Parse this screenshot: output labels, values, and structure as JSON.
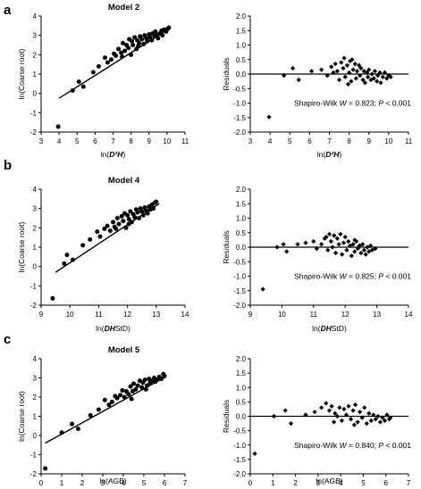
{
  "panels": [
    {
      "letter": "a",
      "left": {
        "title": "Model 2",
        "xlabel_pre": "ln(",
        "xlabel_ital": "D²H",
        "xlabel_post": ")",
        "ylabel": "ln(Coarse root)",
        "xlim": [
          3,
          11
        ],
        "ylim": [
          -2,
          4
        ],
        "xticks": [
          3,
          4,
          5,
          6,
          7,
          8,
          9,
          10,
          11
        ],
        "yticks": [
          -2,
          -1,
          0,
          1,
          2,
          3,
          4
        ],
        "fit_line": [
          [
            4.0,
            -0.25
          ],
          [
            10.2,
            3.4
          ]
        ],
        "points": [
          [
            3.95,
            -1.72
          ],
          [
            4.75,
            0.15
          ],
          [
            5.1,
            0.6
          ],
          [
            5.35,
            0.35
          ],
          [
            5.9,
            1.1
          ],
          [
            6.2,
            1.4
          ],
          [
            6.55,
            1.85
          ],
          [
            6.7,
            1.6
          ],
          [
            6.9,
            1.75
          ],
          [
            7.05,
            2.05
          ],
          [
            7.15,
            1.95
          ],
          [
            7.3,
            2.3
          ],
          [
            7.45,
            2.1
          ],
          [
            7.55,
            2.6
          ],
          [
            7.65,
            2.2
          ],
          [
            7.75,
            2.5
          ],
          [
            7.85,
            2.35
          ],
          [
            7.9,
            2.8
          ],
          [
            8.0,
            2.0
          ],
          [
            8.05,
            2.7
          ],
          [
            8.1,
            2.5
          ],
          [
            8.2,
            2.9
          ],
          [
            8.3,
            2.3
          ],
          [
            8.35,
            2.75
          ],
          [
            8.45,
            2.6
          ],
          [
            8.5,
            2.95
          ],
          [
            8.6,
            2.8
          ],
          [
            8.7,
            2.55
          ],
          [
            8.75,
            3.0
          ],
          [
            8.85,
            2.85
          ],
          [
            8.9,
            2.7
          ],
          [
            9.0,
            3.05
          ],
          [
            9.05,
            2.9
          ],
          [
            9.15,
            2.75
          ],
          [
            9.2,
            3.1
          ],
          [
            9.3,
            2.95
          ],
          [
            9.35,
            3.2
          ],
          [
            9.45,
            3.0
          ],
          [
            9.5,
            2.85
          ],
          [
            9.6,
            3.1
          ],
          [
            9.7,
            3.25
          ],
          [
            9.75,
            3.0
          ],
          [
            9.85,
            3.3
          ],
          [
            9.95,
            3.2
          ],
          [
            10.05,
            3.35
          ],
          [
            10.1,
            3.4
          ],
          [
            7.5,
            1.9
          ],
          [
            8.4,
            2.45
          ]
        ]
      },
      "right": {
        "ylabel": "Residuals",
        "xlabel_pre": "ln(",
        "xlabel_ital": "D²H",
        "xlabel_post": ")",
        "xlim": [
          3,
          11
        ],
        "ylim": [
          -2,
          2
        ],
        "xticks": [
          3,
          4,
          5,
          6,
          7,
          8,
          9,
          10,
          11
        ],
        "yticks": [
          -2.0,
          -1.5,
          -1.0,
          -0.5,
          0.0,
          0.5,
          1.0,
          1.5,
          2.0
        ],
        "annot_pre": "Shapiro-Wilk ",
        "annot_w": "W",
        "annot_mid": " = 0.823; ",
        "annot_p": "P",
        "annot_post": " < 0.001",
        "points": [
          [
            3.95,
            -1.48
          ],
          [
            4.7,
            -0.05
          ],
          [
            5.15,
            0.2
          ],
          [
            5.45,
            -0.2
          ],
          [
            6.1,
            0.1
          ],
          [
            6.6,
            0.15
          ],
          [
            6.9,
            -0.05
          ],
          [
            7.1,
            0.25
          ],
          [
            7.2,
            0.05
          ],
          [
            7.3,
            0.35
          ],
          [
            7.4,
            0.1
          ],
          [
            7.5,
            -0.2
          ],
          [
            7.6,
            0.4
          ],
          [
            7.7,
            0.2
          ],
          [
            7.75,
            0.55
          ],
          [
            7.8,
            -0.1
          ],
          [
            7.9,
            0.3
          ],
          [
            8.0,
            0.05
          ],
          [
            8.05,
            0.45
          ],
          [
            8.1,
            -0.25
          ],
          [
            8.2,
            0.15
          ],
          [
            8.3,
            0.35
          ],
          [
            8.35,
            -0.15
          ],
          [
            8.4,
            0.1
          ],
          [
            8.5,
            0.3
          ],
          [
            8.55,
            -0.05
          ],
          [
            8.6,
            0.2
          ],
          [
            8.7,
            -0.2
          ],
          [
            8.75,
            0.1
          ],
          [
            8.8,
            -0.3
          ],
          [
            8.9,
            0.05
          ],
          [
            8.95,
            -0.1
          ],
          [
            9.0,
            0.15
          ],
          [
            9.1,
            -0.2
          ],
          [
            9.15,
            0.0
          ],
          [
            9.25,
            -0.15
          ],
          [
            9.3,
            0.1
          ],
          [
            9.4,
            -0.25
          ],
          [
            9.45,
            -0.05
          ],
          [
            9.55,
            0.05
          ],
          [
            9.6,
            -0.3
          ],
          [
            9.7,
            -0.1
          ],
          [
            9.8,
            0.05
          ],
          [
            9.9,
            -0.15
          ],
          [
            10.0,
            -0.05
          ],
          [
            10.1,
            -0.1
          ],
          [
            8.15,
            0.5
          ],
          [
            7.95,
            -0.35
          ]
        ]
      }
    },
    {
      "letter": "b",
      "left": {
        "title": "Model 4",
        "xlabel_pre": "ln(",
        "xlabel_ital": "DH",
        "xlabel_post": "StD)",
        "ylabel": "ln(Coarse root)",
        "xlim": [
          9,
          14
        ],
        "ylim": [
          -2,
          4
        ],
        "xticks": [
          9,
          10,
          11,
          12,
          13,
          14
        ],
        "yticks": [
          -2,
          -1,
          0,
          1,
          2,
          3,
          4
        ],
        "fit_line": [
          [
            9.5,
            -0.3
          ],
          [
            13.1,
            3.25
          ]
        ],
        "points": [
          [
            9.4,
            -1.65
          ],
          [
            9.8,
            0.15
          ],
          [
            9.9,
            0.6
          ],
          [
            10.1,
            0.35
          ],
          [
            10.45,
            1.1
          ],
          [
            10.7,
            1.4
          ],
          [
            10.95,
            1.8
          ],
          [
            11.05,
            1.55
          ],
          [
            11.2,
            1.95
          ],
          [
            11.3,
            2.1
          ],
          [
            11.4,
            1.85
          ],
          [
            11.5,
            2.3
          ],
          [
            11.55,
            2.05
          ],
          [
            11.65,
            2.5
          ],
          [
            11.7,
            2.2
          ],
          [
            11.8,
            2.6
          ],
          [
            11.85,
            2.35
          ],
          [
            11.9,
            2.75
          ],
          [
            11.95,
            2.0
          ],
          [
            12.0,
            2.65
          ],
          [
            12.05,
            2.45
          ],
          [
            12.1,
            2.85
          ],
          [
            12.15,
            2.3
          ],
          [
            12.2,
            2.7
          ],
          [
            12.25,
            2.55
          ],
          [
            12.3,
            2.95
          ],
          [
            12.35,
            2.8
          ],
          [
            12.4,
            2.5
          ],
          [
            12.45,
            3.0
          ],
          [
            12.5,
            2.85
          ],
          [
            12.55,
            2.65
          ],
          [
            12.6,
            3.05
          ],
          [
            12.65,
            2.9
          ],
          [
            12.7,
            2.75
          ],
          [
            12.75,
            3.1
          ],
          [
            12.8,
            2.95
          ],
          [
            12.85,
            3.2
          ],
          [
            12.9,
            3.0
          ],
          [
            12.95,
            3.3
          ],
          [
            13.0,
            3.35
          ],
          [
            11.6,
            1.95
          ],
          [
            12.05,
            2.2
          ]
        ]
      },
      "right": {
        "ylabel": "Residuals",
        "xlabel_pre": "ln(",
        "xlabel_ital": "DH",
        "xlabel_post": "StD)",
        "xlim": [
          9,
          14
        ],
        "ylim": [
          -2,
          2
        ],
        "xticks": [
          9,
          10,
          11,
          12,
          13,
          14
        ],
        "yticks": [
          -2.0,
          -1.5,
          -1.0,
          -0.5,
          0.0,
          0.5,
          1.0,
          1.5,
          2.0
        ],
        "annot_pre": "Shapiro-Wilk ",
        "annot_w": "W",
        "annot_mid": " = 0.825; ",
        "annot_p": "P",
        "annot_post": " < 0.001",
        "points": [
          [
            9.4,
            -1.45
          ],
          [
            9.85,
            0.0
          ],
          [
            10.05,
            0.1
          ],
          [
            10.15,
            -0.15
          ],
          [
            10.5,
            0.1
          ],
          [
            10.75,
            0.15
          ],
          [
            11.0,
            0.2
          ],
          [
            11.1,
            -0.05
          ],
          [
            11.25,
            0.1
          ],
          [
            11.35,
            0.3
          ],
          [
            11.45,
            -0.1
          ],
          [
            11.5,
            0.45
          ],
          [
            11.55,
            0.2
          ],
          [
            11.6,
            0.0
          ],
          [
            11.65,
            0.4
          ],
          [
            11.7,
            -0.2
          ],
          [
            11.75,
            0.3
          ],
          [
            11.8,
            0.1
          ],
          [
            11.85,
            0.45
          ],
          [
            11.9,
            -0.25
          ],
          [
            11.95,
            0.15
          ],
          [
            12.0,
            0.35
          ],
          [
            12.05,
            -0.1
          ],
          [
            12.1,
            0.2
          ],
          [
            12.15,
            0.05
          ],
          [
            12.2,
            -0.3
          ],
          [
            12.25,
            0.1
          ],
          [
            12.3,
            -0.15
          ],
          [
            12.35,
            0.2
          ],
          [
            12.4,
            -0.05
          ],
          [
            12.45,
            0.05
          ],
          [
            12.5,
            -0.2
          ],
          [
            12.55,
            0.1
          ],
          [
            12.6,
            -0.1
          ],
          [
            12.65,
            -0.25
          ],
          [
            12.7,
            0.0
          ],
          [
            12.75,
            -0.15
          ],
          [
            12.8,
            0.05
          ],
          [
            12.85,
            -0.1
          ],
          [
            12.95,
            -0.05
          ],
          [
            11.4,
            0.35
          ],
          [
            12.3,
            0.25
          ]
        ]
      }
    },
    {
      "letter": "c",
      "left": {
        "title": "Model 5",
        "xlabel_pre": "ln(AGB)",
        "xlabel_ital": "",
        "xlabel_post": "",
        "ylabel": "ln(Coarse root)",
        "xlim": [
          0,
          7
        ],
        "ylim": [
          -2,
          4
        ],
        "xticks": [
          0,
          1,
          2,
          3,
          4,
          5,
          6,
          7
        ],
        "yticks": [
          -2,
          -1,
          0,
          1,
          2,
          3,
          4
        ],
        "fit_line": [
          [
            0.2,
            -0.4
          ],
          [
            6.05,
            3.05
          ]
        ],
        "points": [
          [
            0.2,
            -1.72
          ],
          [
            1.0,
            0.15
          ],
          [
            1.5,
            0.6
          ],
          [
            1.8,
            0.35
          ],
          [
            2.4,
            1.05
          ],
          [
            2.8,
            1.35
          ],
          [
            3.1,
            1.85
          ],
          [
            3.3,
            1.6
          ],
          [
            3.45,
            1.75
          ],
          [
            3.6,
            2.05
          ],
          [
            3.7,
            1.95
          ],
          [
            3.85,
            2.1
          ],
          [
            3.95,
            2.35
          ],
          [
            4.05,
            2.0
          ],
          [
            4.15,
            2.3
          ],
          [
            4.25,
            2.15
          ],
          [
            4.35,
            2.55
          ],
          [
            4.45,
            2.3
          ],
          [
            4.5,
            2.7
          ],
          [
            4.6,
            2.4
          ],
          [
            4.7,
            2.6
          ],
          [
            4.8,
            2.85
          ],
          [
            4.9,
            2.5
          ],
          [
            4.95,
            2.75
          ],
          [
            5.05,
            2.9
          ],
          [
            5.15,
            2.6
          ],
          [
            5.25,
            2.95
          ],
          [
            5.3,
            2.75
          ],
          [
            5.4,
            2.85
          ],
          [
            5.5,
            3.0
          ],
          [
            5.55,
            2.8
          ],
          [
            5.65,
            2.9
          ],
          [
            5.75,
            3.05
          ],
          [
            5.85,
            2.95
          ],
          [
            5.95,
            3.2
          ],
          [
            6.0,
            3.1
          ],
          [
            4.4,
            1.9
          ],
          [
            5.1,
            2.4
          ]
        ]
      },
      "right": {
        "ylabel": "Residuals",
        "xlabel_pre": "ln(AGB)",
        "xlabel_ital": "",
        "xlabel_post": "",
        "xlim": [
          0,
          7
        ],
        "ylim": [
          -2,
          2
        ],
        "xticks": [
          0,
          1,
          2,
          3,
          4,
          5,
          6,
          7
        ],
        "yticks": [
          -2.0,
          -1.5,
          -1.0,
          -0.5,
          0.0,
          0.5,
          1.0,
          1.5,
          2.0
        ],
        "annot_pre": "Shapiro-Wilk ",
        "annot_w": "W",
        "annot_mid": " = 0.840; ",
        "annot_p": "P",
        "annot_post": " < 0.001",
        "points": [
          [
            0.2,
            -1.3
          ],
          [
            1.05,
            0.0
          ],
          [
            1.55,
            0.2
          ],
          [
            1.8,
            -0.25
          ],
          [
            2.45,
            0.05
          ],
          [
            2.85,
            0.15
          ],
          [
            3.15,
            0.3
          ],
          [
            3.35,
            0.45
          ],
          [
            3.5,
            0.2
          ],
          [
            3.6,
            0.35
          ],
          [
            3.75,
            0.1
          ],
          [
            3.85,
            0.0
          ],
          [
            3.95,
            0.3
          ],
          [
            4.05,
            -0.15
          ],
          [
            4.15,
            0.25
          ],
          [
            4.25,
            0.05
          ],
          [
            4.35,
            0.35
          ],
          [
            4.45,
            -0.1
          ],
          [
            4.55,
            0.2
          ],
          [
            4.65,
            0.4
          ],
          [
            4.75,
            -0.2
          ],
          [
            4.85,
            0.15
          ],
          [
            4.95,
            -0.05
          ],
          [
            5.05,
            0.3
          ],
          [
            5.15,
            -0.25
          ],
          [
            5.25,
            0.1
          ],
          [
            5.35,
            -0.15
          ],
          [
            5.45,
            0.05
          ],
          [
            5.55,
            -0.1
          ],
          [
            5.65,
            0.0
          ],
          [
            5.75,
            -0.2
          ],
          [
            5.85,
            -0.05
          ],
          [
            5.95,
            -0.15
          ],
          [
            6.05,
            0.05
          ],
          [
            6.15,
            -0.1
          ],
          [
            6.2,
            -0.05
          ],
          [
            4.6,
            -0.3
          ],
          [
            3.7,
            -0.2
          ]
        ]
      }
    }
  ]
}
